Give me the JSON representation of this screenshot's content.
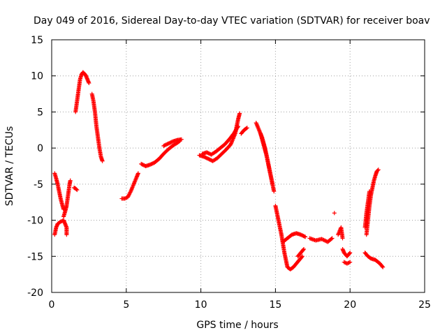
{
  "chart_data": {
    "type": "scatter",
    "title": "Day 049 of 2016, Sidereal Day-to-day VTEC variation (SDTVAR) for receiver boav",
    "xlabel": "GPS time / hours",
    "ylabel": "SDTVAR / TECUs",
    "xlim": [
      0,
      25
    ],
    "ylim": [
      -20,
      15
    ],
    "xticks": [
      "0",
      "5",
      "10",
      "15",
      "20",
      "25"
    ],
    "yticks": [
      "-20",
      "-15",
      "-10",
      "-5",
      "0",
      "5",
      "10",
      "15"
    ],
    "grid": true,
    "marker": "+",
    "color": "#ff0000",
    "series": [
      {
        "segments": [
          [
            [
              0.2,
              -3.5
            ],
            [
              0.3,
              -4.2
            ],
            [
              0.4,
              -5.0
            ],
            [
              0.5,
              -6.0
            ],
            [
              0.6,
              -7.0
            ],
            [
              0.7,
              -7.8
            ],
            [
              0.8,
              -8.5
            ]
          ],
          [
            [
              0.2,
              -12.0
            ],
            [
              0.3,
              -11.0
            ],
            [
              0.4,
              -10.5
            ],
            [
              0.6,
              -10.2
            ],
            [
              0.8,
              -10.0
            ],
            [
              0.9,
              -10.5
            ],
            [
              1.0,
              -11.0
            ],
            [
              1.0,
              -12.0
            ]
          ],
          [
            [
              0.8,
              -9.5
            ],
            [
              0.9,
              -8.8
            ],
            [
              1.0,
              -8.0
            ],
            [
              1.1,
              -6.5
            ],
            [
              1.2,
              -5.0
            ],
            [
              1.25,
              -4.5
            ]
          ],
          [
            [
              1.5,
              -5.5
            ],
            [
              1.6,
              -5.6
            ],
            [
              1.7,
              -5.8
            ]
          ],
          [
            [
              1.6,
              5.0
            ],
            [
              1.7,
              6.5
            ],
            [
              1.8,
              8.0
            ],
            [
              1.9,
              9.5
            ],
            [
              2.0,
              10.2
            ],
            [
              2.1,
              10.5
            ],
            [
              2.2,
              10.3
            ],
            [
              2.3,
              10.0
            ],
            [
              2.4,
              9.5
            ],
            [
              2.5,
              9.0
            ]
          ],
          [
            [
              2.7,
              7.5
            ],
            [
              2.8,
              6.5
            ],
            [
              2.9,
              5.0
            ],
            [
              3.0,
              3.0
            ],
            [
              3.1,
              1.5
            ],
            [
              3.2,
              0.0
            ],
            [
              3.3,
              -1.2
            ],
            [
              3.4,
              -1.8
            ]
          ],
          [
            [
              4.7,
              -7.0
            ],
            [
              4.9,
              -7.0
            ],
            [
              5.1,
              -6.8
            ],
            [
              5.3,
              -6.0
            ],
            [
              5.5,
              -5.0
            ],
            [
              5.7,
              -4.0
            ],
            [
              5.8,
              -3.5
            ]
          ],
          [
            [
              6.0,
              -2.2
            ],
            [
              6.3,
              -2.5
            ],
            [
              6.6,
              -2.3
            ],
            [
              6.9,
              -2.0
            ],
            [
              7.2,
              -1.5
            ],
            [
              7.5,
              -0.8
            ],
            [
              7.8,
              -0.2
            ],
            [
              8.1,
              0.3
            ],
            [
              8.4,
              0.7
            ],
            [
              8.6,
              1.0
            ]
          ],
          [
            [
              7.5,
              0.3
            ],
            [
              7.8,
              0.6
            ],
            [
              8.1,
              0.9
            ],
            [
              8.4,
              1.1
            ],
            [
              8.7,
              1.2
            ]
          ],
          [
            [
              9.9,
              -1.0
            ],
            [
              10.2,
              -1.2
            ],
            [
              10.5,
              -1.5
            ],
            [
              10.8,
              -1.8
            ],
            [
              11.1,
              -1.4
            ],
            [
              11.4,
              -0.8
            ],
            [
              11.7,
              -0.2
            ],
            [
              12.0,
              0.5
            ],
            [
              12.3,
              2.0
            ],
            [
              12.5,
              4.0
            ],
            [
              12.6,
              4.8
            ]
          ],
          [
            [
              10.1,
              -0.8
            ],
            [
              10.4,
              -0.6
            ],
            [
              10.7,
              -0.9
            ],
            [
              11.0,
              -0.5
            ],
            [
              11.3,
              0.0
            ],
            [
              11.6,
              0.5
            ],
            [
              11.9,
              1.2
            ],
            [
              12.2,
              2.0
            ],
            [
              12.5,
              3.0
            ]
          ],
          [
            [
              12.7,
              2.0
            ],
            [
              12.9,
              2.5
            ],
            [
              13.1,
              2.8
            ]
          ],
          [
            [
              13.7,
              3.5
            ],
            [
              13.9,
              2.5
            ],
            [
              14.1,
              1.5
            ],
            [
              14.3,
              0.0
            ],
            [
              14.5,
              -2.0
            ],
            [
              14.7,
              -4.0
            ],
            [
              14.9,
              -6.0
            ]
          ],
          [
            [
              14.0,
              2.0
            ],
            [
              14.2,
              0.5
            ],
            [
              14.4,
              -1.0
            ],
            [
              14.6,
              -3.0
            ],
            [
              14.8,
              -5.0
            ]
          ],
          [
            [
              15.0,
              -8.0
            ],
            [
              15.2,
              -10.0
            ],
            [
              15.4,
              -12.0
            ],
            [
              15.6,
              -14.5
            ],
            [
              15.8,
              -16.5
            ],
            [
              16.0,
              -16.8
            ],
            [
              16.2,
              -16.5
            ],
            [
              16.4,
              -16.0
            ],
            [
              16.6,
              -15.5
            ],
            [
              16.8,
              -15.0
            ]
          ],
          [
            [
              15.5,
              -13.0
            ],
            [
              15.8,
              -12.5
            ],
            [
              16.1,
              -12.0
            ],
            [
              16.4,
              -11.8
            ],
            [
              16.7,
              -12.0
            ],
            [
              17.0,
              -12.3
            ]
          ],
          [
            [
              16.9,
              -14.0
            ],
            [
              16.7,
              -14.5
            ],
            [
              16.5,
              -15.0
            ]
          ],
          [
            [
              17.3,
              -12.5
            ],
            [
              17.7,
              -12.8
            ],
            [
              18.1,
              -12.6
            ],
            [
              18.5,
              -13.0
            ],
            [
              18.8,
              -12.5
            ]
          ],
          [
            [
              18.95,
              -9.0
            ]
          ],
          [
            [
              19.2,
              -12.0
            ],
            [
              19.4,
              -11.0
            ],
            [
              19.5,
              -12.5
            ]
          ],
          [
            [
              19.5,
              -14.0
            ],
            [
              19.6,
              -14.5
            ],
            [
              19.8,
              -15.0
            ],
            [
              20.0,
              -14.5
            ]
          ],
          [
            [
              19.6,
              -15.8
            ],
            [
              19.8,
              -16.0
            ],
            [
              20.0,
              -15.8
            ]
          ],
          [
            [
              21.0,
              -14.5
            ],
            [
              21.2,
              -15.0
            ],
            [
              21.4,
              -15.3
            ],
            [
              21.7,
              -15.5
            ],
            [
              22.0,
              -16.0
            ],
            [
              22.2,
              -16.5
            ]
          ],
          [
            [
              21.1,
              -12.0
            ],
            [
              21.2,
              -10.0
            ],
            [
              21.3,
              -8.0
            ],
            [
              21.4,
              -6.5
            ],
            [
              21.5,
              -5.5
            ],
            [
              21.6,
              -4.5
            ],
            [
              21.7,
              -3.8
            ],
            [
              21.8,
              -3.2
            ],
            [
              21.9,
              -3.0
            ]
          ],
          [
            [
              21.0,
              -11.0
            ],
            [
              21.1,
              -9.0
            ],
            [
              21.2,
              -7.5
            ],
            [
              21.3,
              -6.0
            ]
          ]
        ]
      }
    ]
  }
}
